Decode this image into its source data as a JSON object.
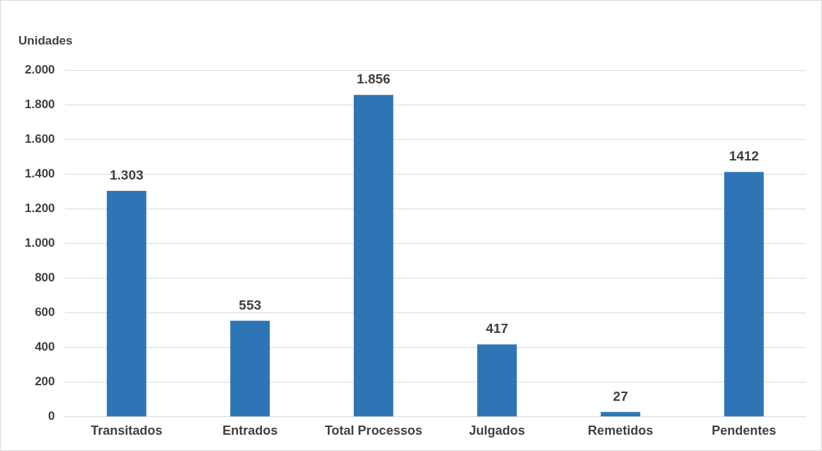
{
  "chart_data": {
    "type": "bar",
    "ylabel": "Unidades",
    "categories": [
      "Transitados",
      "Entrados",
      "Total Processos",
      "Julgados",
      "Remetidos",
      "Pendentes"
    ],
    "values": [
      1303,
      553,
      1856,
      417,
      27,
      1412
    ],
    "value_labels": [
      "1.303",
      "553",
      "1.856",
      "417",
      "27",
      "1412"
    ],
    "color": "#2e75b6",
    "ylim": [
      0,
      2000
    ],
    "yticks": [
      0,
      {
        "value": 200,
        "label": "200"
      },
      {
        "value": 400,
        "label": "400"
      },
      {
        "value": 600,
        "label": "600"
      },
      {
        "value": 800,
        "label": "800"
      },
      {
        "value": 1000,
        "label": "1.000"
      },
      {
        "value": 1200,
        "label": "1.200"
      },
      {
        "value": 1400,
        "label": "1.400"
      },
      {
        "value": 1600,
        "label": "1.600"
      },
      {
        "value": 1800,
        "label": "1.800"
      },
      {
        "value": 2000,
        "label": "2.000"
      }
    ],
    "grid": "y",
    "legend": false
  }
}
